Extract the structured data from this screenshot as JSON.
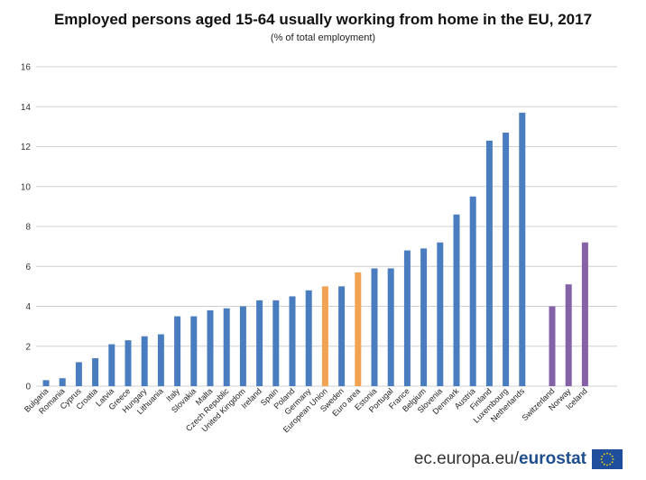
{
  "chart_data": {
    "type": "bar",
    "title": "Employed persons aged 15-64 usually working from home in the EU, 2017",
    "subtitle": "(% of total employment)",
    "xlabel": "",
    "ylabel": "",
    "ylim": [
      0,
      16
    ],
    "yticks": [
      0,
      2,
      4,
      6,
      8,
      10,
      12,
      14,
      16
    ],
    "grid": true,
    "colors": {
      "country": "#4a7dbf",
      "aggregate": "#f2a253",
      "non_eu": "#8562a8"
    },
    "categories": [
      "Bulgaria",
      "Romania",
      "Cyprus",
      "Croatia",
      "Latvia",
      "Greece",
      "Hungary",
      "Lithuania",
      "Italy",
      "Slovakia",
      "Malta",
      "Czech Republic",
      "United Kingdom",
      "Ireland",
      "Spain",
      "Poland",
      "Germany",
      "European Union",
      "Sweden",
      "Euro area",
      "Estonia",
      "Portugal",
      "France",
      "Belgium",
      "Slovenia",
      "Denmark",
      "Austria",
      "Finland",
      "Luxembourg",
      "Netherlands",
      "Switzerland",
      "Norway",
      "Iceland"
    ],
    "values": [
      0.3,
      0.4,
      1.2,
      1.4,
      2.1,
      2.3,
      2.5,
      2.6,
      3.5,
      3.5,
      3.8,
      3.9,
      4.0,
      4.3,
      4.3,
      4.5,
      4.8,
      5.0,
      5.0,
      5.7,
      5.9,
      5.9,
      6.8,
      6.9,
      7.2,
      8.6,
      9.5,
      12.3,
      12.7,
      13.7,
      4.0,
      5.1,
      7.2
    ],
    "groups": [
      "country",
      "country",
      "country",
      "country",
      "country",
      "country",
      "country",
      "country",
      "country",
      "country",
      "country",
      "country",
      "country",
      "country",
      "country",
      "country",
      "country",
      "aggregate",
      "country",
      "aggregate",
      "country",
      "country",
      "country",
      "country",
      "country",
      "country",
      "country",
      "country",
      "country",
      "country",
      "non_eu",
      "non_eu",
      "non_eu"
    ]
  },
  "footer": {
    "source_prefix": "ec.europa.eu/",
    "source_brand": "eurostat"
  }
}
